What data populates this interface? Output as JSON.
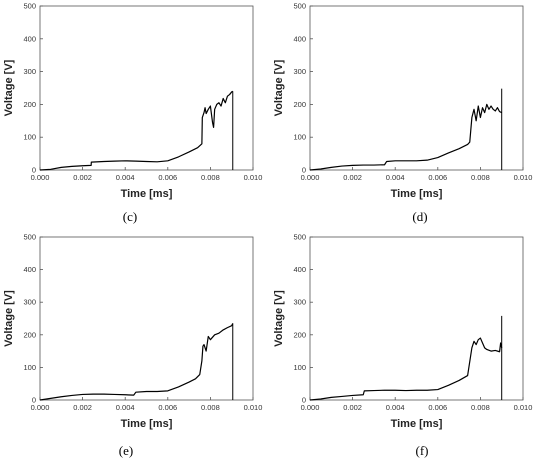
{
  "chart_data": [
    {
      "type": "line",
      "panel_label": "(c)",
      "xlabel": "Time [ms]",
      "ylabel": "Voltage [V]",
      "xlim": [
        0,
        0.01
      ],
      "ylim": [
        0,
        500
      ],
      "xticks": [
        "0.000",
        "0.002",
        "0.004",
        "0.006",
        "0.008",
        "0.010"
      ],
      "yticks": [
        "0",
        "100",
        "200",
        "300",
        "400",
        "500"
      ],
      "series": [
        {
          "x": [
            0,
            0.0005,
            0.001,
            0.0015,
            0.002,
            0.0024,
            0.00241,
            0.003,
            0.0035,
            0.004,
            0.0045,
            0.005,
            0.0055,
            0.006,
            0.0065,
            0.007,
            0.0074,
            0.0076,
            0.00762,
            0.0077,
            0.00775,
            0.0078,
            0.0079,
            0.008,
            0.0081,
            0.00815,
            0.0082,
            0.0083,
            0.0084,
            0.0085,
            0.0086,
            0.0087,
            0.0088,
            0.0089,
            0.009,
            0.00905
          ],
          "y": [
            0,
            2,
            8,
            11,
            13,
            14,
            24,
            26,
            27,
            28,
            27,
            26,
            25,
            28,
            40,
            55,
            68,
            80,
            160,
            175,
            190,
            172,
            185,
            195,
            145,
            130,
            185,
            200,
            205,
            195,
            218,
            205,
            225,
            230,
            238,
            240
          ]
        }
      ],
      "spike": {
        "x": 0.00905,
        "y_from": 0,
        "y_to": 240
      }
    },
    {
      "type": "line",
      "panel_label": "(d)",
      "xlabel": "Time [ms]",
      "ylabel": "Voltage [V]",
      "xlim": [
        0,
        0.01
      ],
      "ylim": [
        0,
        500
      ],
      "xticks": [
        "0.000",
        "0.002",
        "0.004",
        "0.006",
        "0.008",
        "0.010"
      ],
      "yticks": [
        "0",
        "100",
        "200",
        "300",
        "400",
        "500"
      ],
      "series": [
        {
          "x": [
            0,
            0.0005,
            0.001,
            0.0015,
            0.002,
            0.0025,
            0.003,
            0.0035,
            0.0036,
            0.004,
            0.0045,
            0.005,
            0.0055,
            0.006,
            0.0065,
            0.007,
            0.0074,
            0.0075,
            0.0076,
            0.0077,
            0.0078,
            0.0079,
            0.008,
            0.0081,
            0.0082,
            0.0083,
            0.0084,
            0.0085,
            0.0086,
            0.0087,
            0.0088,
            0.0089,
            0.009
          ],
          "y": [
            0,
            3,
            8,
            12,
            14,
            15,
            15,
            16,
            26,
            28,
            28,
            28,
            30,
            38,
            52,
            65,
            78,
            85,
            160,
            185,
            150,
            195,
            160,
            190,
            175,
            200,
            185,
            195,
            185,
            180,
            190,
            178,
            175
          ]
        }
      ],
      "spike": {
        "x": 0.009,
        "y_from": 0,
        "y_to": 248
      }
    },
    {
      "type": "line",
      "panel_label": "(e)",
      "xlabel": "Time [ms]",
      "ylabel": "Voltage [V]",
      "xlim": [
        0,
        0.01
      ],
      "ylim": [
        0,
        500
      ],
      "xticks": [
        "0.000",
        "0.002",
        "0.004",
        "0.006",
        "0.008",
        "0.010"
      ],
      "yticks": [
        "0",
        "100",
        "200",
        "300",
        "400",
        "500"
      ],
      "series": [
        {
          "x": [
            0,
            0.0005,
            0.001,
            0.0015,
            0.002,
            0.0025,
            0.003,
            0.0035,
            0.004,
            0.0044,
            0.0045,
            0.005,
            0.0055,
            0.006,
            0.0065,
            0.007,
            0.0073,
            0.0075,
            0.0076,
            0.00765,
            0.0077,
            0.0078,
            0.0079,
            0.008,
            0.0082,
            0.0084,
            0.0086,
            0.0088,
            0.009,
            0.00905
          ],
          "y": [
            0,
            5,
            10,
            14,
            17,
            18,
            18,
            17,
            16,
            15,
            24,
            26,
            26,
            28,
            40,
            55,
            65,
            78,
            120,
            165,
            170,
            150,
            195,
            185,
            200,
            205,
            215,
            222,
            228,
            235
          ]
        }
      ],
      "spike": {
        "x": 0.00905,
        "y_from": 0,
        "y_to": 235
      }
    },
    {
      "type": "line",
      "panel_label": "(f)",
      "xlabel": "Time [ms]",
      "ylabel": "Voltage [V]",
      "xlim": [
        0,
        0.01
      ],
      "ylim": [
        0,
        500
      ],
      "xticks": [
        "0.000",
        "0.002",
        "0.004",
        "0.006",
        "0.008",
        "0.010"
      ],
      "yticks": [
        "0",
        "100",
        "200",
        "300",
        "400",
        "500"
      ],
      "series": [
        {
          "x": [
            0,
            0.0005,
            0.001,
            0.0015,
            0.002,
            0.0025,
            0.00255,
            0.003,
            0.0035,
            0.004,
            0.0045,
            0.005,
            0.0055,
            0.006,
            0.0065,
            0.007,
            0.0074,
            0.0076,
            0.0077,
            0.0078,
            0.0079,
            0.008,
            0.0081,
            0.0082,
            0.0083,
            0.0085,
            0.0087,
            0.0089,
            0.00895,
            0.009
          ],
          "y": [
            0,
            3,
            8,
            11,
            14,
            16,
            28,
            29,
            30,
            30,
            29,
            30,
            30,
            32,
            45,
            60,
            75,
            160,
            180,
            170,
            185,
            190,
            175,
            160,
            155,
            150,
            152,
            148,
            175,
            160
          ]
        }
      ],
      "spike": {
        "x": 0.009,
        "y_from": 0,
        "y_to": 258
      }
    }
  ]
}
